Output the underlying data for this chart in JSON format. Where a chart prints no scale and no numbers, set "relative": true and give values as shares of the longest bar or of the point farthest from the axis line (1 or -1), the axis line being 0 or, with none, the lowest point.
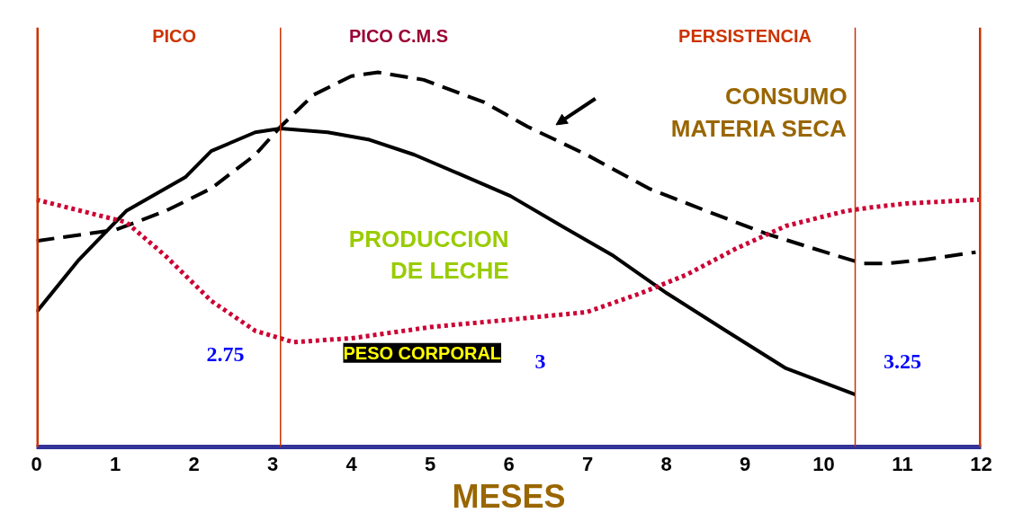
{
  "chart_data": {
    "type": "line",
    "relative": true,
    "xlabel": "MESES",
    "xlim": [
      0,
      12
    ],
    "xticks": [
      0,
      1,
      2,
      3,
      4,
      5,
      6,
      7,
      8,
      9,
      10,
      11,
      12
    ],
    "tick_labels": "x",
    "grid": false,
    "series": [
      {
        "name": "PRODUCCION DE LECHE",
        "color": "#000000",
        "line_style": "solid",
        "x": [
          0,
          0.54,
          1.14,
          1.89,
          2.22,
          2.78,
          3.1,
          3.7,
          4.23,
          4.8,
          5.36,
          6.02,
          6.67,
          7.33,
          8.01,
          8.76,
          9.52,
          10.4
        ],
        "values": [
          0.36,
          0.5,
          0.63,
          0.72,
          0.79,
          0.84,
          0.85,
          0.84,
          0.82,
          0.78,
          0.73,
          0.67,
          0.59,
          0.51,
          0.41,
          0.31,
          0.21,
          0.14
        ]
      },
      {
        "name": "CONSUMO MATERIA SECA",
        "color": "#000000",
        "line_style": "dashed",
        "x": [
          0,
          1.01,
          1.64,
          2.22,
          2.78,
          3.1,
          3.52,
          4,
          4.34,
          4.92,
          5.69,
          6.24,
          6.99,
          7.78,
          8.51,
          9.26,
          10.02,
          10.49,
          10.8,
          11.28,
          11.93
        ],
        "values": [
          0.55,
          0.58,
          0.63,
          0.69,
          0.78,
          0.855,
          0.94,
          0.99,
          1.0,
          0.98,
          0.92,
          0.855,
          0.78,
          0.69,
          0.63,
          0.57,
          0.52,
          0.49,
          0.49,
          0.5,
          0.52
        ]
      },
      {
        "name": "PESO CORPORAL",
        "color": "#cc0033",
        "line_style": "dotted",
        "x": [
          0,
          1.14,
          1.64,
          2.22,
          2.78,
          3.26,
          4,
          5,
          6.02,
          6.99,
          7.67,
          8.26,
          8.89,
          9.52,
          10.28,
          10.62,
          11.05,
          11.97
        ],
        "values": [
          0.66,
          0.6,
          0.51,
          0.39,
          0.31,
          0.28,
          0.29,
          0.32,
          0.34,
          0.36,
          0.41,
          0.46,
          0.53,
          0.59,
          0.63,
          0.64,
          0.65,
          0.66
        ]
      }
    ],
    "ref_lines": [
      {
        "axis": "x",
        "value": 0,
        "color": "#cc3300"
      },
      {
        "axis": "x",
        "value": 3.1,
        "color": "#cc3300"
      },
      {
        "axis": "x",
        "value": 10.4,
        "color": "#cc3300"
      },
      {
        "axis": "x",
        "value": 12,
        "color": "#cc3300"
      }
    ],
    "annotations": [
      "PICO",
      "PICO C.M.S",
      "PERSISTENCIA",
      "2.75",
      "3",
      "3.25"
    ]
  }
}
